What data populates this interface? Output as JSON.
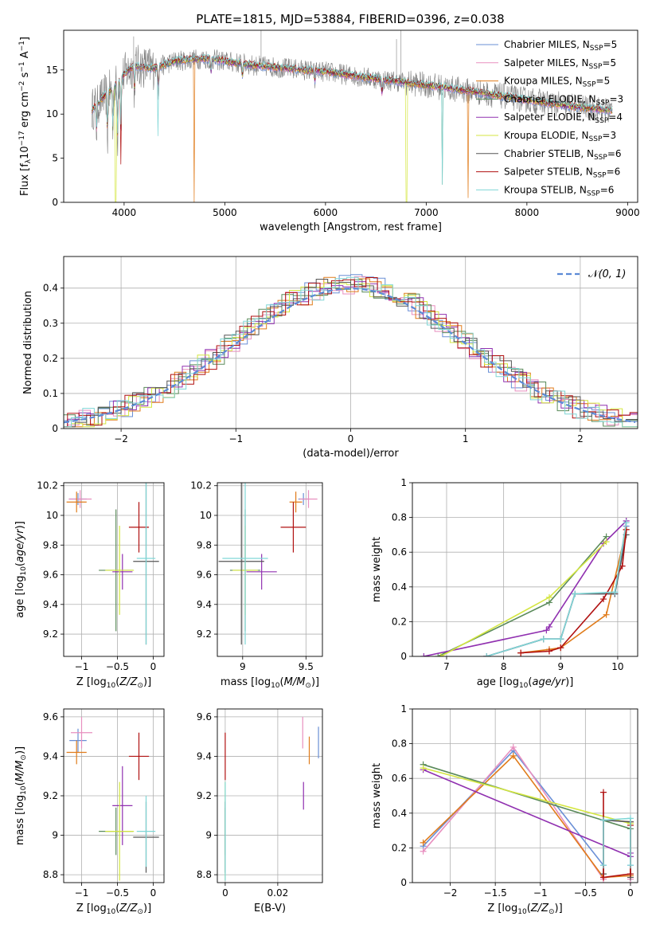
{
  "figure": {
    "title": "PLATE=1815, MJD=53884, FIBERID=0396, z=0.038"
  },
  "colors": {
    "Chabrier MILES": "#6a8fd6",
    "Salpeter MILES": "#e88fbf",
    "Kroupa MILES": "#e07b1a",
    "Chabrier ELODIE": "#5a8a5a",
    "Salpeter ELODIE": "#9030b0",
    "Kroupa ELODIE": "#d4e640",
    "Chabrier STELIB": "#555555",
    "Salpeter STELIB": "#b01010",
    "Kroupa STELIB": "#7fd6d6"
  },
  "chart_data": [
    {
      "id": "spectrum",
      "type": "line",
      "title": "PLATE=1815, MJD=53884, FIBERID=0396, z=0.038",
      "xlabel": "wavelength [Angstrom, rest frame]",
      "ylabel": "Flux [f_λ 10^-17 erg cm^-2 s^-1 A^-1]",
      "xlim": [
        3400,
        9100
      ],
      "ylim": [
        0,
        19.5
      ],
      "xticks": [
        4000,
        5000,
        6000,
        7000,
        8000,
        9000
      ],
      "yticks": [
        0,
        5,
        10,
        15
      ],
      "grid": false,
      "legend_position": "top-right",
      "continuum_x": [
        3680,
        3800,
        3900,
        4000,
        4100,
        4300,
        4500,
        4800,
        5000,
        5300,
        5600,
        6000,
        6500,
        7000,
        7500,
        8000,
        8500,
        8850
      ],
      "continuum_y": [
        10.5,
        12.0,
        13.0,
        14.5,
        15.5,
        15.2,
        16.0,
        16.3,
        16.0,
        15.5,
        15.2,
        14.8,
        14.0,
        13.3,
        12.5,
        11.6,
        10.8,
        10.4
      ],
      "series": [
        {
          "name": "Chabrier MILES",
          "n_ssp": "5"
        },
        {
          "name": "Salpeter MILES",
          "n_ssp": "5"
        },
        {
          "name": "Kroupa MILES",
          "n_ssp": "5"
        },
        {
          "name": "Chabrier ELODIE",
          "n_ssp": "3"
        },
        {
          "name": "Salpeter ELODIE",
          "n_ssp": "4"
        },
        {
          "name": "Kroupa ELODIE",
          "n_ssp": "3"
        },
        {
          "name": "Chabrier STELIB",
          "n_ssp": "6"
        },
        {
          "name": "Salpeter STELIB",
          "n_ssp": "6"
        },
        {
          "name": "Kroupa STELIB",
          "n_ssp": "6"
        }
      ]
    },
    {
      "id": "residuals",
      "type": "histogram",
      "xlabel": "(data-model)/error",
      "ylabel": "Normed distribution",
      "xlim": [
        -2.5,
        2.5
      ],
      "ylim": [
        0,
        0.49
      ],
      "xticks": [
        -2,
        -1,
        0,
        1,
        2
      ],
      "yticks": [
        0.0,
        0.1,
        0.2,
        0.3,
        0.4
      ],
      "grid": true,
      "legend_position": "top-right",
      "reference_label": "N(0,1)"
    },
    {
      "id": "age_vs_Z",
      "type": "errorbar",
      "xlabel": "Z [log10(Z/Z_sun)]",
      "ylabel": "age [log10(age/yr)]",
      "xlim": [
        -1.25,
        0.15
      ],
      "ylim": [
        9.05,
        10.22
      ],
      "xticks": [
        -1.0,
        -0.5,
        0.0
      ],
      "yticks": [
        9.2,
        9.4,
        9.6,
        9.8,
        10.0,
        10.2
      ],
      "grid": true,
      "points": [
        {
          "series": "Chabrier MILES",
          "x": -1.05,
          "xerr": 0.12,
          "y": 10.11,
          "yerr": 0.04
        },
        {
          "series": "Salpeter MILES",
          "x": -1.02,
          "xerr": 0.16,
          "y": 10.11,
          "yerr": 0.06
        },
        {
          "series": "Kroupa MILES",
          "x": -1.07,
          "xerr": 0.14,
          "y": 10.09,
          "yerr": 0.07
        },
        {
          "series": "Chabrier ELODIE",
          "x": -0.52,
          "xerr": 0.24,
          "y": 9.63,
          "yerr": 0.41
        },
        {
          "series": "Salpeter ELODIE",
          "x": -0.43,
          "xerr": 0.14,
          "y": 9.62,
          "yerr": 0.12
        },
        {
          "series": "Kroupa ELODIE",
          "x": -0.47,
          "xerr": 0.2,
          "y": 9.63,
          "yerr": 0.3
        },
        {
          "series": "Chabrier STELIB",
          "x": -0.1,
          "xerr": 0.18,
          "y": 9.69,
          "yerr": 0.56
        },
        {
          "series": "Salpeter STELIB",
          "x": -0.2,
          "xerr": 0.14,
          "y": 9.92,
          "yerr": 0.17
        },
        {
          "series": "Kroupa STELIB",
          "x": -0.1,
          "xerr": 0.13,
          "y": 9.71,
          "yerr": 0.58
        }
      ]
    },
    {
      "id": "age_vs_mass",
      "type": "errorbar",
      "xlabel": "mass [log10(M/M_sun)]",
      "ylabel": "",
      "xlim": [
        8.8,
        9.63
      ],
      "ylim": [
        9.05,
        10.22
      ],
      "xticks": [
        9.0,
        9.5
      ],
      "yticks": [
        9.2,
        9.4,
        9.6,
        9.8,
        10.0,
        10.2
      ],
      "grid": true,
      "points": [
        {
          "series": "Chabrier MILES",
          "x": 9.48,
          "xerr": 0.04,
          "y": 10.11,
          "yerr": 0.04
        },
        {
          "series": "Salpeter MILES",
          "x": 9.52,
          "xerr": 0.07,
          "y": 10.11,
          "yerr": 0.06
        },
        {
          "series": "Kroupa MILES",
          "x": 9.42,
          "xerr": 0.05,
          "y": 10.09,
          "yerr": 0.07
        },
        {
          "series": "Chabrier ELODIE",
          "x": 9.02,
          "xerr": 0.12,
          "y": 9.63,
          "yerr": 0.41
        },
        {
          "series": "Salpeter ELODIE",
          "x": 9.15,
          "xerr": 0.12,
          "y": 9.62,
          "yerr": 0.12
        },
        {
          "series": "Kroupa ELODIE",
          "x": 9.02,
          "xerr": 0.1,
          "y": 9.63,
          "yerr": 0.3
        },
        {
          "series": "Chabrier STELIB",
          "x": 8.99,
          "xerr": 0.18,
          "y": 9.69,
          "yerr": 0.56
        },
        {
          "series": "Salpeter STELIB",
          "x": 9.4,
          "xerr": 0.1,
          "y": 9.92,
          "yerr": 0.17
        },
        {
          "series": "Kroupa STELIB",
          "x": 9.02,
          "xerr": 0.18,
          "y": 9.71,
          "yerr": 0.58
        }
      ]
    },
    {
      "id": "weight_vs_age",
      "type": "line",
      "xlabel": "age [log10(age/yr)]",
      "ylabel": "mass weight",
      "xlim": [
        6.4,
        10.35
      ],
      "ylim": [
        0,
        1.0
      ],
      "xticks": [
        7,
        8,
        9,
        10
      ],
      "yticks": [
        0.0,
        0.2,
        0.4,
        0.6,
        0.8,
        1.0
      ],
      "grid": true,
      "series": [
        {
          "name": "Chabrier MILES",
          "x": [
            7.7,
            8.7,
            9.0,
            9.25,
            9.95,
            10.15
          ],
          "y": [
            0.0,
            0.1,
            0.1,
            0.36,
            0.36,
            0.75
          ]
        },
        {
          "name": "Salpeter MILES",
          "x": [
            7.7,
            8.7,
            9.0,
            9.25,
            9.95,
            10.15
          ],
          "y": [
            0.0,
            0.1,
            0.1,
            0.36,
            0.36,
            0.78
          ]
        },
        {
          "name": "Kroupa MILES",
          "x": [
            8.3,
            8.8,
            9.0,
            9.8,
            10.15
          ],
          "y": [
            0.02,
            0.04,
            0.05,
            0.24,
            0.73
          ]
        },
        {
          "name": "Chabrier ELODIE",
          "x": [
            6.85,
            8.8,
            9.8
          ],
          "y": [
            0.0,
            0.31,
            0.69
          ]
        },
        {
          "name": "Salpeter ELODIE",
          "x": [
            6.6,
            8.75,
            8.8,
            9.75,
            10.15
          ],
          "y": [
            0.0,
            0.15,
            0.17,
            0.65,
            0.78
          ]
        },
        {
          "name": "Kroupa ELODIE",
          "x": [
            6.9,
            8.8,
            9.8
          ],
          "y": [
            0.0,
            0.34,
            0.66
          ]
        },
        {
          "name": "Chabrier STELIB",
          "x": [
            7.7,
            8.7,
            9.0,
            9.25,
            9.95,
            10.15
          ],
          "y": [
            0.0,
            0.1,
            0.1,
            0.36,
            0.36,
            0.7
          ]
        },
        {
          "name": "Salpeter STELIB",
          "x": [
            8.3,
            8.8,
            9.0,
            9.75,
            10.08,
            10.15
          ],
          "y": [
            0.02,
            0.03,
            0.05,
            0.33,
            0.52,
            0.73
          ]
        },
        {
          "name": "Kroupa STELIB",
          "x": [
            7.7,
            8.7,
            9.0,
            9.25,
            9.95,
            10.15
          ],
          "y": [
            0.0,
            0.1,
            0.1,
            0.36,
            0.37,
            0.77
          ]
        }
      ]
    },
    {
      "id": "mass_vs_Z",
      "type": "errorbar",
      "xlabel": "Z [log10(Z/Z_sun)]",
      "ylabel": "mass [log10(M/M_sun)]",
      "xlim": [
        -1.25,
        0.15
      ],
      "ylim": [
        8.76,
        9.64
      ],
      "xticks": [
        -1.0,
        -0.5,
        0.0
      ],
      "yticks": [
        8.8,
        9.0,
        9.2,
        9.4,
        9.6
      ],
      "grid": true,
      "points": [
        {
          "series": "Chabrier MILES",
          "x": -1.05,
          "xerr": 0.12,
          "y": 9.48,
          "yerr": 0.06
        },
        {
          "series": "Salpeter MILES",
          "x": -1.0,
          "xerr": 0.15,
          "y": 9.52,
          "yerr": 0.08
        },
        {
          "series": "Kroupa MILES",
          "x": -1.07,
          "xerr": 0.14,
          "y": 9.42,
          "yerr": 0.06
        },
        {
          "series": "Chabrier ELODIE",
          "x": -0.52,
          "xerr": 0.24,
          "y": 9.02,
          "yerr": 0.12
        },
        {
          "series": "Salpeter ELODIE",
          "x": -0.43,
          "xerr": 0.14,
          "y": 9.15,
          "yerr": 0.2
        },
        {
          "series": "Kroupa ELODIE",
          "x": -0.47,
          "xerr": 0.2,
          "y": 9.02,
          "yerr": 0.25
        },
        {
          "series": "Chabrier STELIB",
          "x": -0.1,
          "xerr": 0.18,
          "y": 8.99,
          "yerr": 0.18
        },
        {
          "series": "Salpeter STELIB",
          "x": -0.2,
          "xerr": 0.14,
          "y": 9.4,
          "yerr": 0.12
        },
        {
          "series": "Kroupa STELIB",
          "x": -0.1,
          "xerr": 0.13,
          "y": 9.02,
          "yerr": 0.18
        }
      ]
    },
    {
      "id": "mass_vs_ebv",
      "type": "errorbar",
      "xlabel": "E(B-V)",
      "ylabel": "",
      "xlim": [
        -0.003,
        0.037
      ],
      "ylim": [
        8.76,
        9.64
      ],
      "xticks": [
        0.0,
        0.02
      ],
      "yticks": [
        8.8,
        9.0,
        9.2,
        9.4,
        9.6
      ],
      "grid": true,
      "points": [
        {
          "series": "Chabrier MILES",
          "x": 0.0355,
          "xerr": 0,
          "y": 9.47,
          "yerr": 0.08
        },
        {
          "series": "Salpeter MILES",
          "x": 0.0295,
          "xerr": 0,
          "y": 9.52,
          "yerr": 0.08
        },
        {
          "series": "Kroupa MILES",
          "x": 0.032,
          "xerr": 0,
          "y": 9.43,
          "yerr": 0.07
        },
        {
          "series": "Chabrier ELODIE",
          "x": 0.0,
          "xerr": 0,
          "y": 9.02,
          "yerr": 0.12
        },
        {
          "series": "Salpeter ELODIE",
          "x": 0.0298,
          "xerr": 0,
          "y": 9.2,
          "yerr": 0.07
        },
        {
          "series": "Kroupa ELODIE",
          "x": 0.0,
          "xerr": 0,
          "y": 9.02,
          "yerr": 0.25
        },
        {
          "series": "Chabrier STELIB",
          "x": 0.0,
          "xerr": 0,
          "y": 8.99,
          "yerr": 0.18
        },
        {
          "series": "Salpeter STELIB",
          "x": 0.0,
          "xerr": 0,
          "y": 9.4,
          "yerr": 0.12
        },
        {
          "series": "Kroupa STELIB",
          "x": 0.0,
          "xerr": 0,
          "y": 9.02,
          "yerr": 0.25
        }
      ]
    },
    {
      "id": "weight_vs_Z",
      "type": "line",
      "xlabel": "Z [log10(Z/Z_sun)]",
      "ylabel": "mass weight",
      "xlim": [
        -2.42,
        0.08
      ],
      "ylim": [
        0,
        1.0
      ],
      "xticks": [
        -2.0,
        -1.5,
        -1.0,
        -0.5,
        0.0
      ],
      "yticks": [
        0.0,
        0.2,
        0.4,
        0.6,
        0.8,
        1.0
      ],
      "grid": true,
      "series": [
        {
          "name": "Chabrier MILES",
          "x": [
            -2.3,
            -1.3,
            -0.3,
            -0.3,
            0.0,
            0.0
          ],
          "y": [
            0.21,
            0.76,
            0.1,
            0.36,
            0.35,
            0.1
          ]
        },
        {
          "name": "Salpeter MILES",
          "x": [
            -2.3,
            -1.3,
            -0.3,
            -0.3,
            0.0,
            0.0
          ],
          "y": [
            0.18,
            0.78,
            0.02,
            0.36,
            0.35,
            0.02
          ]
        },
        {
          "name": "Kroupa MILES",
          "x": [
            -2.3,
            -1.3,
            -0.3,
            0.0,
            0.0
          ],
          "y": [
            0.23,
            0.73,
            0.03,
            0.04,
            0.35
          ]
        },
        {
          "name": "Chabrier ELODIE",
          "x": [
            -2.3,
            0.0
          ],
          "y": [
            0.68,
            0.31
          ]
        },
        {
          "name": "Salpeter ELODIE",
          "x": [
            -2.3,
            0.0,
            0.0
          ],
          "y": [
            0.65,
            0.15,
            0.17
          ]
        },
        {
          "name": "Kroupa ELODIE",
          "x": [
            -2.3,
            0.0
          ],
          "y": [
            0.66,
            0.34
          ]
        },
        {
          "name": "Chabrier STELIB",
          "x": [
            -0.3,
            -0.3,
            0.0,
            0.0
          ],
          "y": [
            0.05,
            0.36,
            0.35,
            0.03
          ]
        },
        {
          "name": "Salpeter STELIB",
          "x": [
            -0.3,
            -0.3,
            0.0,
            0.0
          ],
          "y": [
            0.52,
            0.03,
            0.05,
            0.33
          ]
        },
        {
          "name": "Kroupa STELIB",
          "x": [
            -0.3,
            -0.3,
            0.0,
            0.0
          ],
          "y": [
            0.1,
            0.36,
            0.37,
            0.1
          ]
        }
      ]
    }
  ]
}
